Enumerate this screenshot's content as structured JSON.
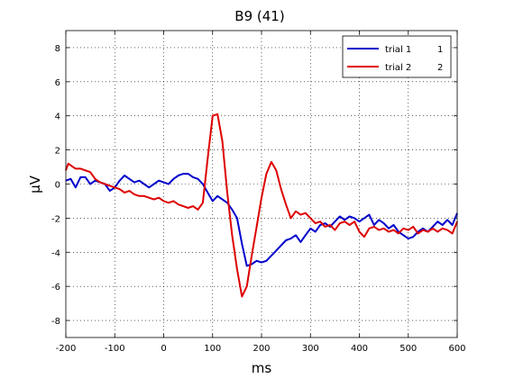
{
  "chart_data": {
    "type": "line",
    "title": "B9 (41)",
    "xlabel": "ms",
    "ylabel": "µV",
    "xlim": [
      -200,
      600
    ],
    "ylim": [
      -9,
      9
    ],
    "xticks": [
      -200,
      -100,
      0,
      100,
      200,
      300,
      400,
      500,
      600
    ],
    "yticks": [
      -8,
      -6,
      -4,
      -2,
      0,
      2,
      4,
      6,
      8
    ],
    "grid": true,
    "legend_position": "top-right",
    "series": [
      {
        "name": "trial 1",
        "legend_count": "1",
        "color": "#0000cc",
        "points": [
          [
            -200,
            0.2
          ],
          [
            -190,
            0.3
          ],
          [
            -180,
            -0.2
          ],
          [
            -170,
            0.4
          ],
          [
            -160,
            0.4
          ],
          [
            -150,
            0.0
          ],
          [
            -140,
            0.2
          ],
          [
            -130,
            0.1
          ],
          [
            -120,
            0.0
          ],
          [
            -110,
            -0.4
          ],
          [
            -100,
            -0.2
          ],
          [
            -90,
            0.2
          ],
          [
            -80,
            0.5
          ],
          [
            -70,
            0.3
          ],
          [
            -60,
            0.1
          ],
          [
            -50,
            0.2
          ],
          [
            -40,
            0.0
          ],
          [
            -30,
            -0.2
          ],
          [
            -20,
            0.0
          ],
          [
            -10,
            0.2
          ],
          [
            0,
            0.1
          ],
          [
            10,
            0.0
          ],
          [
            20,
            0.3
          ],
          [
            30,
            0.5
          ],
          [
            40,
            0.6
          ],
          [
            50,
            0.6
          ],
          [
            60,
            0.4
          ],
          [
            70,
            0.3
          ],
          [
            80,
            0.0
          ],
          [
            90,
            -0.5
          ],
          [
            100,
            -1.0
          ],
          [
            110,
            -0.7
          ],
          [
            120,
            -0.9
          ],
          [
            130,
            -1.1
          ],
          [
            140,
            -1.5
          ],
          [
            150,
            -2.0
          ],
          [
            160,
            -3.5
          ],
          [
            170,
            -4.8
          ],
          [
            180,
            -4.7
          ],
          [
            190,
            -4.5
          ],
          [
            200,
            -4.6
          ],
          [
            210,
            -4.5
          ],
          [
            220,
            -4.2
          ],
          [
            230,
            -3.9
          ],
          [
            240,
            -3.6
          ],
          [
            250,
            -3.3
          ],
          [
            260,
            -3.2
          ],
          [
            270,
            -3.0
          ],
          [
            280,
            -3.4
          ],
          [
            290,
            -3.0
          ],
          [
            300,
            -2.6
          ],
          [
            310,
            -2.8
          ],
          [
            320,
            -2.4
          ],
          [
            330,
            -2.3
          ],
          [
            340,
            -2.5
          ],
          [
            350,
            -2.2
          ],
          [
            360,
            -1.9
          ],
          [
            370,
            -2.1
          ],
          [
            380,
            -1.9
          ],
          [
            390,
            -2.0
          ],
          [
            400,
            -2.2
          ],
          [
            410,
            -2.0
          ],
          [
            420,
            -1.8
          ],
          [
            430,
            -2.4
          ],
          [
            440,
            -2.1
          ],
          [
            450,
            -2.3
          ],
          [
            460,
            -2.6
          ],
          [
            470,
            -2.4
          ],
          [
            480,
            -2.8
          ],
          [
            490,
            -3.0
          ],
          [
            500,
            -3.2
          ],
          [
            510,
            -3.1
          ],
          [
            520,
            -2.8
          ],
          [
            530,
            -2.6
          ],
          [
            540,
            -2.8
          ],
          [
            550,
            -2.5
          ],
          [
            560,
            -2.2
          ],
          [
            570,
            -2.4
          ],
          [
            580,
            -2.1
          ],
          [
            590,
            -2.4
          ],
          [
            600,
            -1.7
          ]
        ]
      },
      {
        "name": "trial 2",
        "legend_count": "2",
        "color": "#dd0000",
        "points": [
          [
            -200,
            0.8
          ],
          [
            -195,
            1.2
          ],
          [
            -190,
            1.1
          ],
          [
            -180,
            0.9
          ],
          [
            -170,
            0.9
          ],
          [
            -160,
            0.8
          ],
          [
            -150,
            0.7
          ],
          [
            -140,
            0.3
          ],
          [
            -130,
            0.1
          ],
          [
            -120,
            0.0
          ],
          [
            -110,
            -0.1
          ],
          [
            -100,
            -0.2
          ],
          [
            -90,
            -0.3
          ],
          [
            -80,
            -0.5
          ],
          [
            -70,
            -0.4
          ],
          [
            -60,
            -0.6
          ],
          [
            -50,
            -0.7
          ],
          [
            -40,
            -0.7
          ],
          [
            -30,
            -0.8
          ],
          [
            -20,
            -0.9
          ],
          [
            -10,
            -0.8
          ],
          [
            0,
            -1.0
          ],
          [
            10,
            -1.1
          ],
          [
            20,
            -1.0
          ],
          [
            30,
            -1.2
          ],
          [
            40,
            -1.3
          ],
          [
            50,
            -1.4
          ],
          [
            60,
            -1.3
          ],
          [
            70,
            -1.5
          ],
          [
            80,
            -1.1
          ],
          [
            90,
            1.5
          ],
          [
            100,
            4.0
          ],
          [
            110,
            4.1
          ],
          [
            120,
            2.5
          ],
          [
            130,
            -0.5
          ],
          [
            140,
            -3.0
          ],
          [
            150,
            -5.0
          ],
          [
            160,
            -6.6
          ],
          [
            170,
            -6.0
          ],
          [
            180,
            -4.2
          ],
          [
            190,
            -2.5
          ],
          [
            200,
            -0.8
          ],
          [
            210,
            0.6
          ],
          [
            220,
            1.3
          ],
          [
            230,
            0.8
          ],
          [
            240,
            -0.3
          ],
          [
            250,
            -1.2
          ],
          [
            260,
            -2.0
          ],
          [
            270,
            -1.6
          ],
          [
            280,
            -1.8
          ],
          [
            290,
            -1.7
          ],
          [
            300,
            -2.0
          ],
          [
            310,
            -2.3
          ],
          [
            320,
            -2.2
          ],
          [
            330,
            -2.5
          ],
          [
            340,
            -2.4
          ],
          [
            350,
            -2.7
          ],
          [
            360,
            -2.3
          ],
          [
            370,
            -2.2
          ],
          [
            380,
            -2.4
          ],
          [
            390,
            -2.2
          ],
          [
            400,
            -2.8
          ],
          [
            410,
            -3.1
          ],
          [
            420,
            -2.6
          ],
          [
            430,
            -2.5
          ],
          [
            440,
            -2.7
          ],
          [
            450,
            -2.6
          ],
          [
            460,
            -2.8
          ],
          [
            470,
            -2.7
          ],
          [
            480,
            -2.9
          ],
          [
            490,
            -2.6
          ],
          [
            500,
            -2.7
          ],
          [
            510,
            -2.5
          ],
          [
            520,
            -2.9
          ],
          [
            530,
            -2.7
          ],
          [
            540,
            -2.8
          ],
          [
            550,
            -2.6
          ],
          [
            560,
            -2.8
          ],
          [
            570,
            -2.6
          ],
          [
            580,
            -2.7
          ],
          [
            590,
            -2.9
          ],
          [
            600,
            -2.2
          ]
        ]
      }
    ]
  }
}
